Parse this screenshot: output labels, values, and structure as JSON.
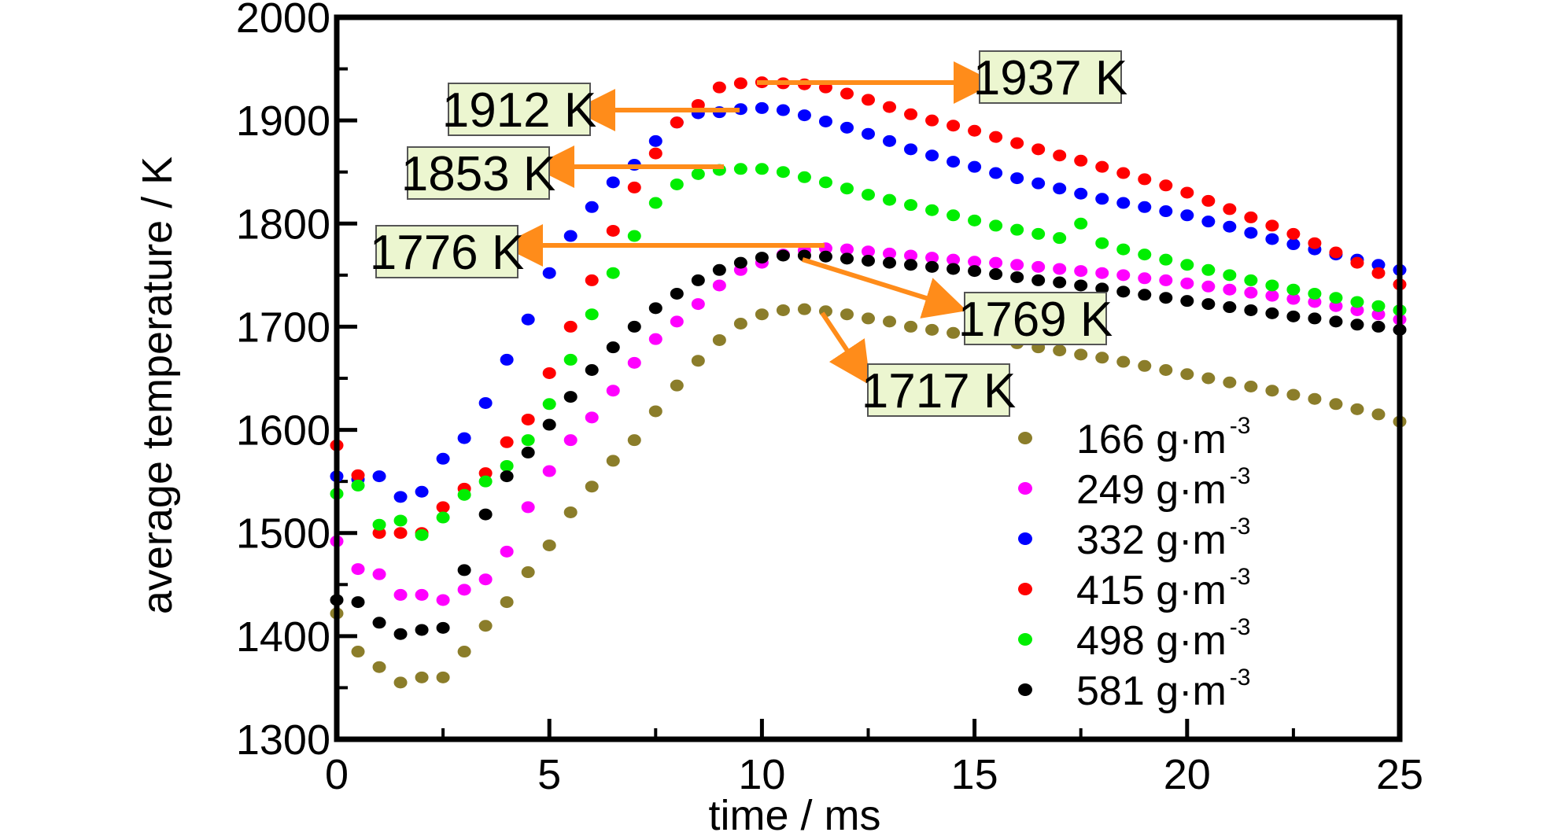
{
  "chart_data": {
    "type": "scatter",
    "xlabel": "time / ms",
    "ylabel": "average temperature / K",
    "xlim": [
      0,
      25
    ],
    "ylim": [
      1300,
      2000
    ],
    "x_ticks": [
      0,
      5,
      10,
      15,
      20,
      25
    ],
    "y_ticks": [
      1300,
      1400,
      1500,
      1600,
      1700,
      1800,
      1900,
      2000
    ],
    "grid": false,
    "legend_position": "bottom-right",
    "x": [
      0,
      0.5,
      1,
      1.5,
      2,
      2.5,
      3,
      3.5,
      4,
      4.5,
      5,
      5.5,
      6,
      6.5,
      7,
      7.5,
      8,
      8.5,
      9,
      9.5,
      10,
      10.5,
      11,
      11.5,
      12,
      12.5,
      13,
      13.5,
      14,
      14.5,
      15,
      15.5,
      16,
      16.5,
      17,
      17.5,
      18,
      18.5,
      19,
      19.5,
      20,
      20.5,
      21,
      21.5,
      22,
      22.5,
      23,
      23.5,
      24,
      24.5,
      25
    ],
    "series": [
      {
        "name": "166",
        "unit": "g·m",
        "exp": "-3",
        "color": "#8b7d2a",
        "values": [
          1422,
          1385,
          1370,
          1355,
          1360,
          1360,
          1385,
          1410,
          1433,
          1462,
          1488,
          1520,
          1545,
          1570,
          1590,
          1618,
          1643,
          1667,
          1687,
          1703,
          1712,
          1716,
          1717,
          1715,
          1712,
          1708,
          1705,
          1700,
          1697,
          1694,
          1691,
          1688,
          1684,
          1680,
          1677,
          1673,
          1670,
          1666,
          1662,
          1658,
          1654,
          1650,
          1646,
          1642,
          1638,
          1634,
          1630,
          1625,
          1620,
          1615,
          1608
        ]
      },
      {
        "name": "249",
        "unit": "g·m",
        "exp": "-3",
        "color": "#ff00ff",
        "values": [
          1492,
          1465,
          1460,
          1440,
          1440,
          1435,
          1445,
          1455,
          1482,
          1525,
          1560,
          1590,
          1612,
          1638,
          1665,
          1688,
          1705,
          1722,
          1740,
          1755,
          1762,
          1770,
          1774,
          1776,
          1775,
          1773,
          1771,
          1769,
          1767,
          1765,
          1763,
          1762,
          1760,
          1758,
          1756,
          1754,
          1752,
          1750,
          1747,
          1745,
          1742,
          1739,
          1736,
          1733,
          1730,
          1727,
          1724,
          1720,
          1716,
          1712,
          1707
        ]
      },
      {
        "name": "332",
        "unit": "g·m",
        "exp": "-3",
        "color": "#0000ff",
        "values": [
          1555,
          1552,
          1555,
          1535,
          1540,
          1572,
          1592,
          1626,
          1668,
          1707,
          1752,
          1788,
          1816,
          1840,
          1857,
          1880,
          1898,
          1907,
          1908,
          1911,
          1912,
          1910,
          1905,
          1899,
          1893,
          1887,
          1880,
          1872,
          1866,
          1860,
          1855,
          1849,
          1844,
          1839,
          1834,
          1829,
          1824,
          1820,
          1816,
          1812,
          1808,
          1802,
          1797,
          1791,
          1785,
          1780,
          1775,
          1770,
          1765,
          1760,
          1755
        ]
      },
      {
        "name": "415",
        "unit": "g·m",
        "exp": "-3",
        "color": "#ff0000",
        "values": [
          1585,
          1556,
          1500,
          1500,
          1500,
          1525,
          1543,
          1558,
          1588,
          1610,
          1655,
          1700,
          1745,
          1793,
          1835,
          1868,
          1898,
          1915,
          1932,
          1936,
          1937,
          1936,
          1935,
          1932,
          1926,
          1920,
          1913,
          1906,
          1900,
          1895,
          1890,
          1884,
          1878,
          1872,
          1866,
          1861,
          1855,
          1849,
          1843,
          1837,
          1830,
          1822,
          1814,
          1806,
          1798,
          1790,
          1781,
          1772,
          1762,
          1752,
          1741
        ]
      },
      {
        "name": "498",
        "unit": "g·m",
        "exp": "-3",
        "color": "#00ee00",
        "values": [
          1538,
          1546,
          1508,
          1512,
          1498,
          1515,
          1537,
          1550,
          1565,
          1590,
          1625,
          1668,
          1712,
          1752,
          1788,
          1820,
          1838,
          1848,
          1852,
          1853,
          1853,
          1850,
          1845,
          1840,
          1834,
          1828,
          1823,
          1818,
          1813,
          1808,
          1803,
          1798,
          1794,
          1790,
          1786,
          1800,
          1781,
          1775,
          1770,
          1765,
          1760,
          1755,
          1750,
          1745,
          1740,
          1736,
          1732,
          1728,
          1724,
          1720,
          1716
        ]
      },
      {
        "name": "581",
        "unit": "g·m",
        "exp": "-3",
        "color": "#000000",
        "values": [
          1435,
          1433,
          1413,
          1402,
          1406,
          1408,
          1464,
          1518,
          1555,
          1578,
          1605,
          1632,
          1658,
          1680,
          1700,
          1718,
          1732,
          1745,
          1755,
          1762,
          1767,
          1769,
          1769,
          1768,
          1766,
          1764,
          1762,
          1760,
          1758,
          1756,
          1754,
          1751,
          1748,
          1745,
          1743,
          1740,
          1737,
          1734,
          1731,
          1728,
          1725,
          1722,
          1719,
          1716,
          1713,
          1710,
          1708,
          1705,
          1702,
          1700,
          1697
        ]
      }
    ],
    "annotations": [
      {
        "text": "1937 K",
        "x": 10,
        "y": 1937
      },
      {
        "text": "1912 K",
        "x": 10,
        "y": 1912
      },
      {
        "text": "1853 K",
        "x": 10,
        "y": 1853
      },
      {
        "text": "1776 K",
        "x": 11.5,
        "y": 1776
      },
      {
        "text": "1769 K",
        "x": 11,
        "y": 1769
      },
      {
        "text": "1717 K",
        "x": 11,
        "y": 1717
      }
    ],
    "colors": {
      "arrow": "#ff8c1a",
      "label_fill": "#ecf6d0",
      "label_border": "#555555"
    }
  }
}
